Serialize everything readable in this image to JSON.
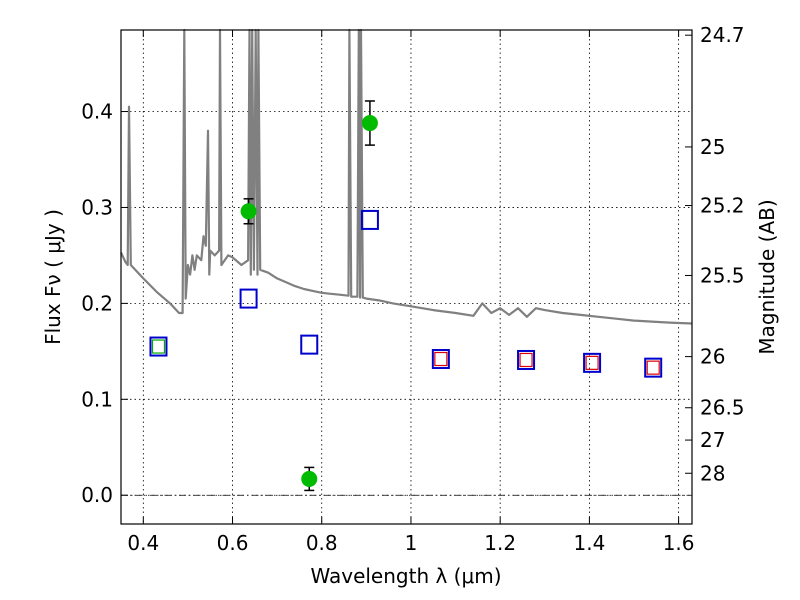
{
  "chart_data": {
    "type": "scatter",
    "xlabel": "Wavelength  λ (μm)",
    "ylabel": "Flux  Fν  ( μJy )",
    "ylabel_right": "Magnitude (AB)",
    "xlim": [
      0.35,
      1.63
    ],
    "ylim": [
      -0.03,
      0.485
    ],
    "x_ticks": [
      0.4,
      0.6,
      0.8,
      1.0,
      1.2,
      1.4,
      1.6
    ],
    "x_tick_labels": [
      "0.4",
      "0.6",
      "0.8",
      "1",
      "1.2",
      "1.4",
      "1.6"
    ],
    "y_ticks": [
      0.0,
      0.1,
      0.2,
      0.3,
      0.4
    ],
    "y_tick_labels": [
      "0.0",
      "0.1",
      "0.2",
      "0.3",
      "0.4"
    ],
    "right_ticks": [
      {
        "flux": 0.4796,
        "label": "24.7"
      },
      {
        "flux": 0.3631,
        "label": "25"
      },
      {
        "flux": 0.302,
        "label": "25.2"
      },
      {
        "flux": 0.2291,
        "label": "25.5"
      },
      {
        "flux": 0.1445,
        "label": "26"
      },
      {
        "flux": 0.0912,
        "label": "26.5"
      },
      {
        "flux": 0.0575,
        "label": "27"
      },
      {
        "flux": 0.0229,
        "label": "28"
      }
    ],
    "grid": true,
    "zero_line": true,
    "series": [
      {
        "kind": "line",
        "color": "#808080",
        "points": [
          [
            0.35,
            0.253
          ],
          [
            0.36,
            0.243
          ],
          [
            0.365,
            0.24
          ],
          [
            0.368,
            0.405
          ],
          [
            0.372,
            0.24
          ],
          [
            0.4,
            0.226
          ],
          [
            0.43,
            0.212
          ],
          [
            0.46,
            0.2
          ],
          [
            0.48,
            0.19
          ],
          [
            0.488,
            0.19
          ],
          [
            0.492,
            0.485
          ],
          [
            0.495,
            0.205
          ],
          [
            0.5,
            0.24
          ],
          [
            0.505,
            0.23
          ],
          [
            0.51,
            0.25
          ],
          [
            0.515,
            0.235
          ],
          [
            0.52,
            0.25
          ],
          [
            0.53,
            0.245
          ],
          [
            0.535,
            0.27
          ],
          [
            0.54,
            0.26
          ],
          [
            0.545,
            0.38
          ],
          [
            0.548,
            0.23
          ],
          [
            0.55,
            0.255
          ],
          [
            0.56,
            0.25
          ],
          [
            0.57,
            0.255
          ],
          [
            0.572,
            0.485
          ],
          [
            0.575,
            0.24
          ],
          [
            0.59,
            0.25
          ],
          [
            0.6,
            0.248
          ],
          [
            0.62,
            0.24
          ],
          [
            0.635,
            0.245
          ],
          [
            0.638,
            0.485
          ],
          [
            0.641,
            0.23
          ],
          [
            0.644,
            0.485
          ],
          [
            0.648,
            0.235
          ],
          [
            0.652,
            0.485
          ],
          [
            0.656,
            0.23
          ],
          [
            0.658,
            0.485
          ],
          [
            0.662,
            0.235
          ],
          [
            0.68,
            0.232
          ],
          [
            0.7,
            0.226
          ],
          [
            0.72,
            0.222
          ],
          [
            0.74,
            0.218
          ],
          [
            0.76,
            0.215
          ],
          [
            0.78,
            0.213
          ],
          [
            0.8,
            0.211
          ],
          [
            0.82,
            0.21
          ],
          [
            0.84,
            0.209
          ],
          [
            0.86,
            0.208
          ],
          [
            0.862,
            0.485
          ],
          [
            0.866,
            0.207
          ],
          [
            0.88,
            0.207
          ],
          [
            0.883,
            0.485
          ],
          [
            0.886,
            0.206
          ],
          [
            0.888,
            0.485
          ],
          [
            0.892,
            0.206
          ],
          [
            0.9,
            0.205
          ],
          [
            0.93,
            0.203
          ],
          [
            0.96,
            0.2
          ],
          [
            1.0,
            0.197
          ],
          [
            1.05,
            0.193
          ],
          [
            1.1,
            0.19
          ],
          [
            1.14,
            0.187
          ],
          [
            1.16,
            0.2
          ],
          [
            1.18,
            0.19
          ],
          [
            1.2,
            0.195
          ],
          [
            1.22,
            0.188
          ],
          [
            1.24,
            0.195
          ],
          [
            1.26,
            0.186
          ],
          [
            1.28,
            0.195
          ],
          [
            1.3,
            0.193
          ],
          [
            1.34,
            0.19
          ],
          [
            1.38,
            0.188
          ],
          [
            1.42,
            0.186
          ],
          [
            1.46,
            0.184
          ],
          [
            1.5,
            0.182
          ],
          [
            1.54,
            0.181
          ],
          [
            1.58,
            0.18
          ],
          [
            1.63,
            0.179
          ]
        ]
      },
      {
        "kind": "points",
        "marker": "circle",
        "color": "#00bb00",
        "points": [
          {
            "x": 0.636,
            "y": 0.296,
            "err": 0.013
          },
          {
            "x": 0.772,
            "y": 0.017,
            "err": 0.012
          },
          {
            "x": 0.908,
            "y": 0.388,
            "err": 0.023
          }
        ]
      },
      {
        "kind": "points",
        "marker": "square",
        "color": "#0000cc",
        "points": [
          {
            "x": 0.434,
            "y": 0.155
          },
          {
            "x": 0.636,
            "y": 0.205
          },
          {
            "x": 0.772,
            "y": 0.157
          },
          {
            "x": 0.908,
            "y": 0.287
          },
          {
            "x": 1.067,
            "y": 0.142
          },
          {
            "x": 1.258,
            "y": 0.141
          },
          {
            "x": 1.406,
            "y": 0.138
          },
          {
            "x": 1.543,
            "y": 0.133
          }
        ]
      },
      {
        "kind": "points",
        "marker": "square-small",
        "color": "#00aa00",
        "points": [
          {
            "x": 0.434,
            "y": 0.155
          }
        ]
      },
      {
        "kind": "points",
        "marker": "square-small",
        "color": "#dd0000",
        "points": [
          {
            "x": 1.067,
            "y": 0.142
          },
          {
            "x": 1.258,
            "y": 0.141
          },
          {
            "x": 1.406,
            "y": 0.138
          },
          {
            "x": 1.543,
            "y": 0.133
          }
        ]
      }
    ]
  }
}
